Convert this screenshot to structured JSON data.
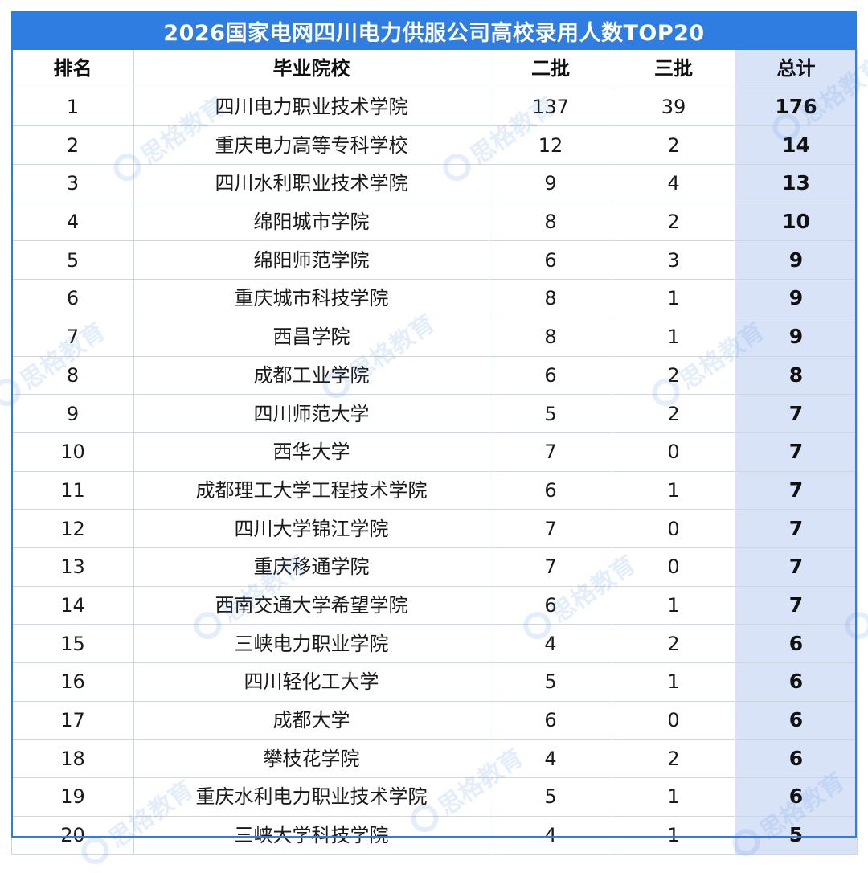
{
  "title": "2026国家电网四川电力供服公司高校录用人数TOP20",
  "headers": {
    "rank": "排名",
    "school": "毕业院校",
    "batch2": "二批",
    "batch3": "三批",
    "total": "总计"
  },
  "rows": [
    {
      "rank": "1",
      "school": "四川电力职业技术学院",
      "batch2": "137",
      "batch3": "39",
      "total": "176"
    },
    {
      "rank": "2",
      "school": "重庆电力高等专科学校",
      "batch2": "12",
      "batch3": "2",
      "total": "14"
    },
    {
      "rank": "3",
      "school": "四川水利职业技术学院",
      "batch2": "9",
      "batch3": "4",
      "total": "13"
    },
    {
      "rank": "4",
      "school": "绵阳城市学院",
      "batch2": "8",
      "batch3": "2",
      "total": "10"
    },
    {
      "rank": "5",
      "school": "绵阳师范学院",
      "batch2": "6",
      "batch3": "3",
      "total": "9"
    },
    {
      "rank": "6",
      "school": "重庆城市科技学院",
      "batch2": "8",
      "batch3": "1",
      "total": "9"
    },
    {
      "rank": "7",
      "school": "西昌学院",
      "batch2": "8",
      "batch3": "1",
      "total": "9"
    },
    {
      "rank": "8",
      "school": "成都工业学院",
      "batch2": "6",
      "batch3": "2",
      "total": "8"
    },
    {
      "rank": "9",
      "school": "四川师范大学",
      "batch2": "5",
      "batch3": "2",
      "total": "7"
    },
    {
      "rank": "10",
      "school": "西华大学",
      "batch2": "7",
      "batch3": "0",
      "total": "7"
    },
    {
      "rank": "11",
      "school": "成都理工大学工程技术学院",
      "batch2": "6",
      "batch3": "1",
      "total": "7"
    },
    {
      "rank": "12",
      "school": "四川大学锦江学院",
      "batch2": "7",
      "batch3": "0",
      "total": "7"
    },
    {
      "rank": "13",
      "school": "重庆移通学院",
      "batch2": "7",
      "batch3": "0",
      "total": "7"
    },
    {
      "rank": "14",
      "school": "西南交通大学希望学院",
      "batch2": "6",
      "batch3": "1",
      "total": "7"
    },
    {
      "rank": "15",
      "school": "三峡电力职业学院",
      "batch2": "4",
      "batch3": "2",
      "total": "6"
    },
    {
      "rank": "16",
      "school": "四川轻化工大学",
      "batch2": "5",
      "batch3": "1",
      "total": "6"
    },
    {
      "rank": "17",
      "school": "成都大学",
      "batch2": "6",
      "batch3": "0",
      "total": "6"
    },
    {
      "rank": "18",
      "school": "攀枝花学院",
      "batch2": "4",
      "batch3": "2",
      "total": "6"
    },
    {
      "rank": "19",
      "school": "重庆水利电力职业技术学院",
      "batch2": "5",
      "batch3": "1",
      "total": "6"
    },
    {
      "rank": "20",
      "school": "三峡大学科技学院",
      "batch2": "4",
      "batch3": "1",
      "total": "5"
    }
  ],
  "watermark": "思格教育",
  "colors": {
    "accent": "#2f7de1",
    "total_column_bg": "#d9e3f7",
    "grid": "#cfd6e2"
  }
}
